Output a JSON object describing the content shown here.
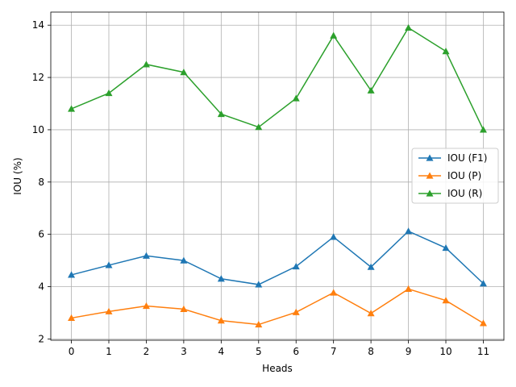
{
  "chart_data": {
    "type": "line",
    "title": "",
    "xlabel": "Heads",
    "ylabel": "IOU (%)",
    "x": [
      0,
      1,
      2,
      3,
      4,
      5,
      6,
      7,
      8,
      9,
      10,
      11
    ],
    "xlim": [
      -0.55,
      11.55
    ],
    "ylim": [
      1.95,
      14.5
    ],
    "yticks": [
      2,
      4,
      6,
      8,
      10,
      12,
      14
    ],
    "grid": true,
    "legend_position": "center-right",
    "marker": "triangle-up",
    "series": [
      {
        "name": "IOU (F1)",
        "color": "#1f77b4",
        "values": [
          4.45,
          4.82,
          5.18,
          5.0,
          4.3,
          4.08,
          4.77,
          5.9,
          4.75,
          6.12,
          5.48,
          4.12
        ]
      },
      {
        "name": "IOU (P)",
        "color": "#ff7f0e",
        "values": [
          2.8,
          3.05,
          3.26,
          3.14,
          2.7,
          2.55,
          3.02,
          3.77,
          2.98,
          3.91,
          3.47,
          2.6
        ]
      },
      {
        "name": "IOU (R)",
        "color": "#2ca02c",
        "values": [
          10.8,
          11.4,
          12.5,
          12.2,
          10.6,
          10.1,
          11.2,
          13.6,
          11.5,
          13.9,
          13.0,
          10.0
        ]
      }
    ]
  }
}
